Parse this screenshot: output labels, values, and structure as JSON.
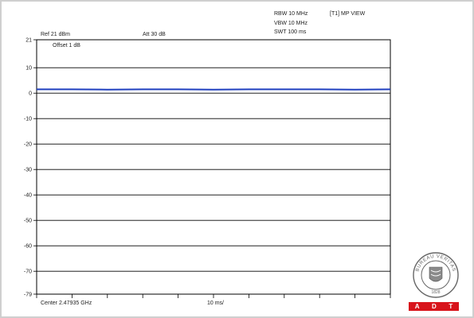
{
  "header": {
    "rbw": "RBW 10 MHz",
    "vbw": "VBW 10 MHz",
    "swt": "SWT 100 ms",
    "trace_label": "[T1] MP VIEW",
    "ref": "Ref 21 dBm",
    "att": "Att  30 dB",
    "offset": "Offset 1 dB"
  },
  "footer": {
    "center": "Center 2.47935 GHz",
    "span_per_div": "10 ms/"
  },
  "colors": {
    "trace": "#1f3fbf",
    "grid": "#000000",
    "logo_ring": "#666666",
    "adt_bar": "#d8141b"
  },
  "logo": {
    "ring_text": "BUREAU VERITAS",
    "year": "1828",
    "bar_letters": [
      "A",
      "D",
      "T"
    ]
  },
  "chart_data": {
    "type": "line",
    "title": "",
    "xlabel": "",
    "ylabel": "",
    "x_unit": "ms",
    "xlim": [
      0,
      100
    ],
    "ylim": [
      -79,
      21
    ],
    "y_ticks": [
      21,
      10,
      0,
      -10,
      -20,
      -30,
      -40,
      -50,
      -60,
      -70,
      -79
    ],
    "y_tick_labels": [
      "21",
      "10",
      "0",
      "-10",
      "-20",
      "-30",
      "-40",
      "-50",
      "-60",
      "-70",
      "-79"
    ],
    "x_divisions": 10,
    "grid": "horizontal",
    "series": [
      {
        "x": [
          0,
          10,
          20,
          30,
          40,
          50,
          60,
          70,
          80,
          90,
          100
        ],
        "values": [
          1.5,
          1.5,
          1.4,
          1.5,
          1.5,
          1.4,
          1.5,
          1.5,
          1.5,
          1.4,
          1.5
        ]
      }
    ]
  }
}
